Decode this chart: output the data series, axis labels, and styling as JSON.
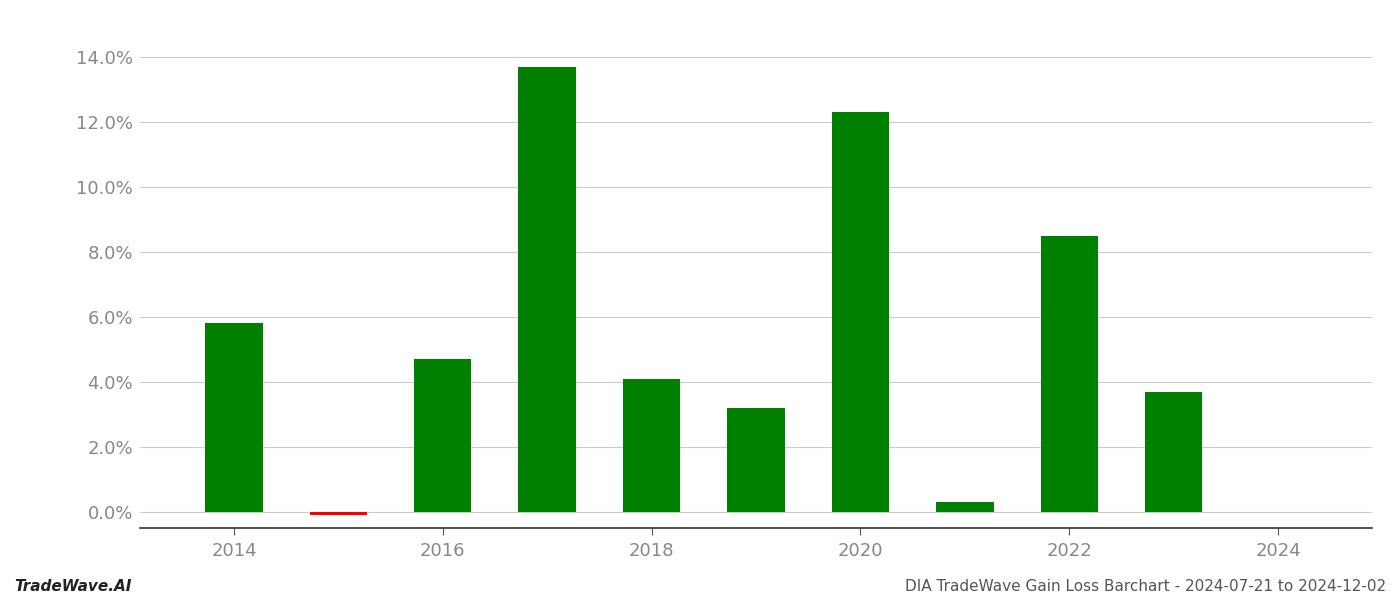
{
  "years": [
    2014,
    2015,
    2016,
    2017,
    2018,
    2019,
    2020,
    2021,
    2022,
    2023
  ],
  "values": [
    0.058,
    -0.001,
    0.047,
    0.137,
    0.041,
    0.032,
    0.123,
    0.003,
    0.085,
    0.037
  ],
  "bar_colors": [
    "#008000",
    "#ff0000",
    "#008000",
    "#008000",
    "#008000",
    "#008000",
    "#008000",
    "#008000",
    "#008000",
    "#008000"
  ],
  "ylim": [
    -0.005,
    0.152
  ],
  "yticks": [
    0.0,
    0.02,
    0.04,
    0.06,
    0.08,
    0.1,
    0.12,
    0.14
  ],
  "tick_color": "#888888",
  "grid_color": "#cccccc",
  "bg_color": "#ffffff",
  "footer_left": "TradeWave.AI",
  "footer_right": "DIA TradeWave Gain Loss Barchart - 2024-07-21 to 2024-12-02",
  "bar_width": 0.55,
  "xtick_years": [
    2014,
    2016,
    2018,
    2020,
    2022,
    2024
  ],
  "xlim": [
    2013.1,
    2024.9
  ]
}
